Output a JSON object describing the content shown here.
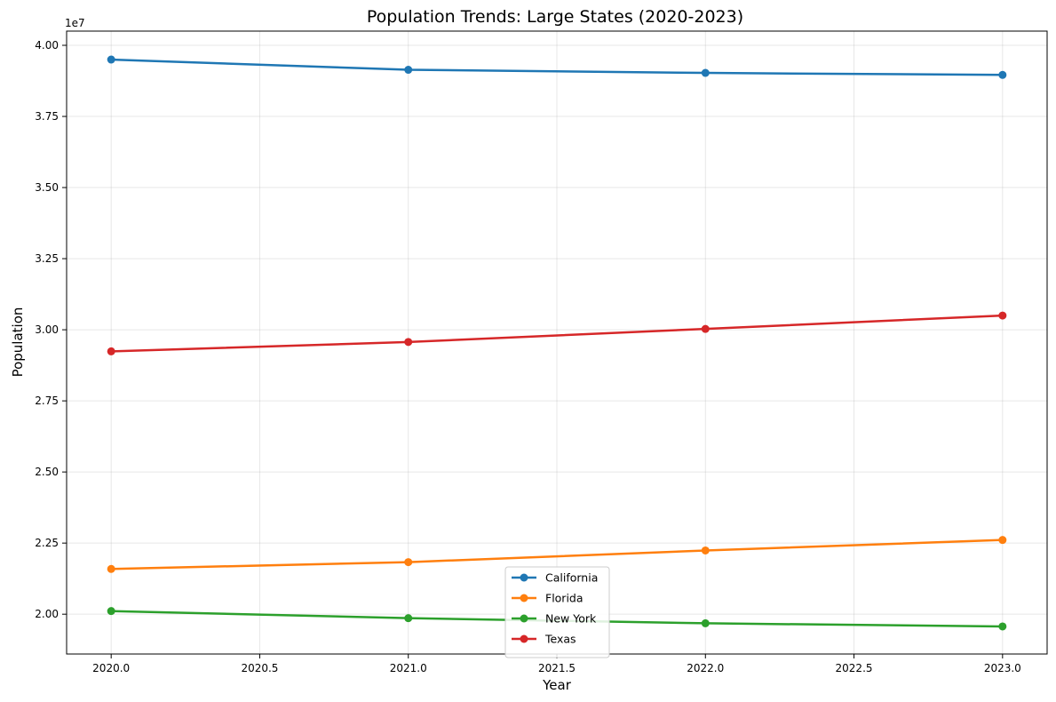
{
  "chart_data": {
    "type": "line",
    "title": "Population Trends: Large States (2020-2023)",
    "xlabel": "Year",
    "ylabel": "Population",
    "y_offset_label": "1e7",
    "xlim": [
      2019.85,
      2023.15
    ],
    "ylim": [
      18600000,
      40500000
    ],
    "x_ticks": [
      2020.0,
      2020.5,
      2021.0,
      2021.5,
      2022.0,
      2022.5,
      2023.0
    ],
    "x_tick_labels": [
      "2020.0",
      "2020.5",
      "2021.0",
      "2021.5",
      "2022.0",
      "2022.5",
      "2023.0"
    ],
    "y_ticks": [
      20000000,
      22500000,
      25000000,
      27500000,
      30000000,
      32500000,
      35000000,
      37500000,
      40000000
    ],
    "y_tick_labels": [
      "2.00",
      "2.25",
      "2.50",
      "2.75",
      "3.00",
      "3.25",
      "3.50",
      "3.75",
      "4.00"
    ],
    "grid": true,
    "legend_position": "bottom-center",
    "x": [
      2020,
      2021,
      2022,
      2023
    ],
    "series": [
      {
        "name": "California",
        "color": "#1f77b4",
        "values": [
          39500000,
          39140000,
          39030000,
          38960000
        ]
      },
      {
        "name": "Florida",
        "color": "#ff7f0e",
        "values": [
          21590000,
          21830000,
          22240000,
          22610000
        ]
      },
      {
        "name": "New York",
        "color": "#2ca02c",
        "values": [
          20110000,
          19860000,
          19680000,
          19570000
        ]
      },
      {
        "name": "Texas",
        "color": "#d62728",
        "values": [
          29240000,
          29570000,
          30030000,
          30500000
        ]
      }
    ]
  }
}
